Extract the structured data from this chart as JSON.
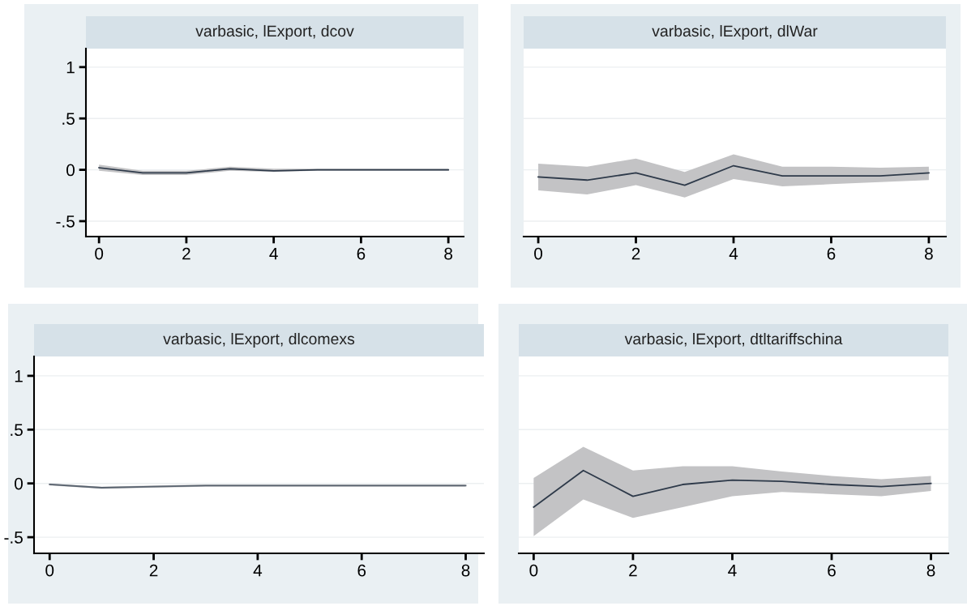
{
  "chart_data": [
    {
      "type": "line",
      "title": "varbasic, lExport, dcov",
      "x": [
        0,
        1,
        2,
        3,
        4,
        5,
        6,
        7,
        8
      ],
      "xlim": [
        -0.3,
        8.35
      ],
      "xticks": [
        0,
        2,
        4,
        6,
        8
      ],
      "ylim": [
        -0.65,
        1.18
      ],
      "yticks": [
        {
          "value": -0.5,
          "label": "-.5"
        },
        0,
        {
          "value": 0.5,
          "label": ".5"
        },
        1
      ],
      "grid": "y",
      "series": [
        {
          "color": "#2e3a4a",
          "values": [
            0.02,
            -0.03,
            -0.03,
            0.01,
            -0.01,
            0,
            0,
            0,
            0
          ],
          "lower": [
            -0.01,
            -0.05,
            -0.05,
            -0.01,
            -0.02,
            -0.01,
            -0.01,
            -0.01,
            -0.01
          ],
          "upper": [
            0.05,
            -0.01,
            -0.01,
            0.03,
            0.01,
            0.01,
            0.01,
            0.01,
            0.01
          ]
        }
      ]
    },
    {
      "type": "line",
      "title": "varbasic, lExport, dlWar",
      "x": [
        0,
        1,
        2,
        3,
        4,
        5,
        6,
        7,
        8
      ],
      "xlim": [
        -0.3,
        8.35
      ],
      "xticks": [
        0,
        2,
        4,
        6,
        8
      ],
      "ylim": [
        -0.65,
        1.18
      ],
      "yticks": [
        {
          "value": -0.5,
          "label": null
        },
        {
          "value": 0,
          "label": null
        },
        {
          "value": 0.5,
          "label": null
        },
        {
          "value": 1,
          "label": null
        }
      ],
      "grid": "y",
      "tick_labels": "x",
      "series": [
        {
          "color": "#2e3a4a",
          "values": [
            -0.07,
            -0.1,
            -0.03,
            -0.15,
            0.04,
            -0.06,
            -0.06,
            -0.06,
            -0.03
          ],
          "lower": [
            -0.2,
            -0.24,
            -0.15,
            -0.27,
            -0.09,
            -0.16,
            -0.14,
            -0.12,
            -0.1
          ],
          "upper": [
            0.06,
            0.03,
            0.11,
            -0.02,
            0.15,
            0.03,
            0.03,
            0.02,
            0.03
          ]
        }
      ]
    },
    {
      "type": "line",
      "title": "varbasic, lExport, dlcomexs",
      "x": [
        0,
        1,
        2,
        3,
        4,
        5,
        6,
        7,
        8
      ],
      "xlim": [
        -0.3,
        8.35
      ],
      "xticks": [
        0,
        2,
        4,
        6,
        8
      ],
      "ylim": [
        -0.65,
        1.18
      ],
      "yticks": [
        {
          "value": -0.5,
          "label": "-.5"
        },
        0,
        {
          "value": 0.5,
          "label": ".5"
        },
        1
      ],
      "grid": "y",
      "series": [
        {
          "color": "#5a6470",
          "values": [
            -0.01,
            -0.04,
            -0.03,
            -0.02,
            -0.02,
            -0.02,
            -0.02,
            -0.02,
            -0.02
          ],
          "lower": [
            -0.02,
            -0.05,
            -0.04,
            -0.03,
            -0.03,
            -0.03,
            -0.03,
            -0.03,
            -0.03
          ],
          "upper": [
            0,
            -0.03,
            -0.02,
            -0.01,
            -0.01,
            -0.01,
            -0.01,
            -0.01,
            -0.01
          ]
        }
      ]
    },
    {
      "type": "line",
      "title": "varbasic, lExport, dtltariffschina",
      "x": [
        0,
        1,
        2,
        3,
        4,
        5,
        6,
        7,
        8
      ],
      "xlim": [
        -0.3,
        8.35
      ],
      "xticks": [
        0,
        2,
        4,
        6,
        8
      ],
      "ylim": [
        -0.65,
        1.18
      ],
      "yticks": [
        {
          "value": -0.5,
          "label": null
        },
        {
          "value": 0,
          "label": null
        },
        {
          "value": 0.5,
          "label": null
        },
        {
          "value": 1,
          "label": null
        }
      ],
      "grid": "y",
      "tick_labels": "x",
      "series": [
        {
          "color": "#2e3a4a",
          "values": [
            -0.22,
            0.12,
            -0.12,
            -0.01,
            0.03,
            0.02,
            -0.01,
            -0.03,
            0
          ],
          "lower": [
            -0.49,
            -0.15,
            -0.32,
            -0.22,
            -0.12,
            -0.08,
            -0.1,
            -0.12,
            -0.07
          ],
          "upper": [
            0.05,
            0.34,
            0.12,
            0.16,
            0.16,
            0.11,
            0.07,
            0.04,
            0.07
          ]
        }
      ]
    }
  ]
}
